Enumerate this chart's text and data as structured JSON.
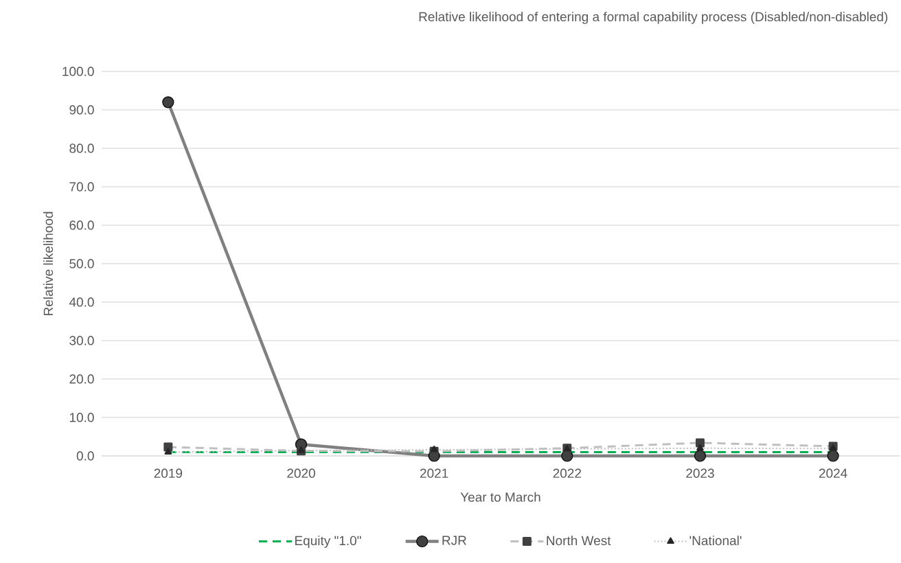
{
  "chart_data": {
    "type": "line",
    "title": "Relative likelihood of entering a formal capability process (Disabled/non-disabled)",
    "xlabel": "Year to March",
    "ylabel": "Relative likelihood",
    "categories": [
      "2019",
      "2020",
      "2021",
      "2022",
      "2023",
      "2024"
    ],
    "ylim": [
      0,
      100
    ],
    "yticks": [
      {
        "value": 0,
        "label": "0.0"
      },
      {
        "value": 10,
        "label": "10.0"
      },
      {
        "value": 20,
        "label": "20.0"
      },
      {
        "value": 30,
        "label": "30.0"
      },
      {
        "value": 40,
        "label": "40.0"
      },
      {
        "value": 50,
        "label": "50.0"
      },
      {
        "value": 60,
        "label": "60.0"
      },
      {
        "value": 70,
        "label": "70.0"
      },
      {
        "value": 80,
        "label": "80.0"
      },
      {
        "value": 90,
        "label": "90.0"
      },
      {
        "value": 100,
        "label": "100.0"
      }
    ],
    "grid": "y",
    "legend": "bottom",
    "series": [
      {
        "name": "Equity \"1.0\"",
        "color": "#00b050",
        "values": [
          1.0,
          1.0,
          1.0,
          1.0,
          1.0,
          1.0
        ],
        "marker": "none",
        "line_style": "dashed"
      },
      {
        "name": "RJR",
        "color": "#808080",
        "values": [
          92.0,
          3.0,
          0.0,
          0.0,
          0.0,
          0.0
        ],
        "marker": "circle",
        "line_style": "solid"
      },
      {
        "name": "North West",
        "color": "#bfbfbf",
        "values": [
          2.3,
          1.3,
          1.2,
          2.0,
          3.4,
          2.5
        ],
        "marker": "square",
        "line_style": "dashed"
      },
      {
        "name": "'National'",
        "color": "#bfbfbf",
        "values": [
          1.0,
          1.4,
          1.6,
          1.8,
          2.0,
          1.9
        ],
        "marker": "triangle",
        "line_style": "dotted"
      }
    ]
  }
}
